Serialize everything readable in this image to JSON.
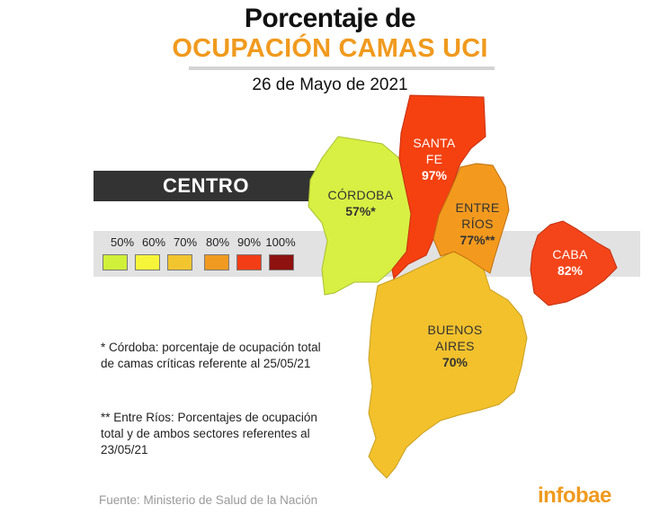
{
  "header": {
    "title_line1": "Porcentaje de",
    "title_line2": "OCUPACIÓN CAMAS UCI",
    "date": "26 de Mayo de 2021"
  },
  "band_label": "CENTRO",
  "legend": {
    "items": [
      {
        "label": "50%",
        "color": "#d0f03a"
      },
      {
        "label": "60%",
        "color": "#f7f53a"
      },
      {
        "label": "70%",
        "color": "#f2c52f"
      },
      {
        "label": "80%",
        "color": "#f09a22"
      },
      {
        "label": "90%",
        "color": "#f23d16"
      },
      {
        "label": "100%",
        "color": "#8e1210"
      }
    ]
  },
  "regions": [
    {
      "id": "santa-fe",
      "name": "SANTA FE",
      "name_line1": "SANTA",
      "name_line2": "FE",
      "percent": "97%",
      "percent_value": 97,
      "fill": "#f4410f",
      "text_color": "#ffffff"
    },
    {
      "id": "cordoba",
      "name": "CÓRDOBA",
      "name_line1": "CÓRDOBA",
      "percent": "57%*",
      "percent_value": 57,
      "fill": "#d8f043",
      "text_color": "#333333"
    },
    {
      "id": "entre-rios",
      "name": "ENTRE RÍOS",
      "name_line1": "ENTRE",
      "name_line2": "RÍOS",
      "percent": "77%**",
      "percent_value": 77,
      "fill": "#f39a1e",
      "text_color": "#333333"
    },
    {
      "id": "caba",
      "name": "CABA",
      "name_line1": "CABA",
      "percent": "82%",
      "percent_value": 82,
      "fill": "#f4451a",
      "text_color": "#ffffff"
    },
    {
      "id": "buenos-aires",
      "name": "BUENOS AIRES",
      "name_line1": "BUENOS",
      "name_line2": "AIRES",
      "percent": "70%",
      "percent_value": 70,
      "fill": "#f2c12c",
      "text_color": "#333333"
    }
  ],
  "notes": {
    "cordoba": [
      "* Córdoba: porcentaje de ocupación total",
      "de camas críticas referente al 25/05/21"
    ],
    "entre_rios": [
      "** Entre Ríos: Porcentajes de ocupación",
      "total y de ambos sectores referentes al",
      "23/05/21"
    ]
  },
  "source": "Fuente: Ministerio de Salud de la Nación",
  "brand": "infobae"
}
